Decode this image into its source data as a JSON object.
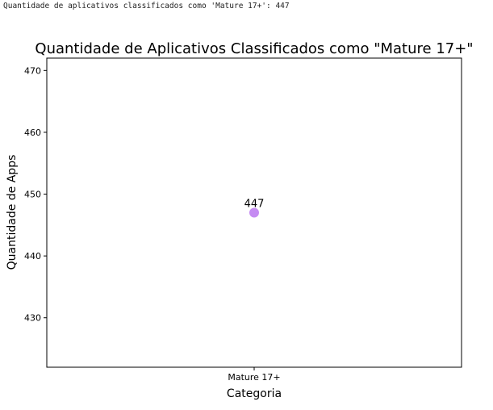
{
  "console": {
    "output_text": "Quantidade de aplicativos classificados como 'Mature 17+': 447"
  },
  "chart_data": {
    "type": "scatter",
    "title": "Quantidade de Aplicativos Classificados como \"Mature 17+\"",
    "xlabel": "Categoria",
    "ylabel": "Quantidade de Apps",
    "categories": [
      "Mature 17+"
    ],
    "values": [
      447
    ],
    "data_labels": [
      "447"
    ],
    "ylim": [
      422,
      472
    ],
    "yticks": [
      {
        "value": 430,
        "label": "430"
      },
      {
        "value": 440,
        "label": "440"
      },
      {
        "value": 450,
        "label": "450"
      },
      {
        "value": 460,
        "label": "460"
      },
      {
        "value": 470,
        "label": "470"
      }
    ],
    "marker_color": "#c58bf2",
    "grid": false,
    "legend": false
  }
}
